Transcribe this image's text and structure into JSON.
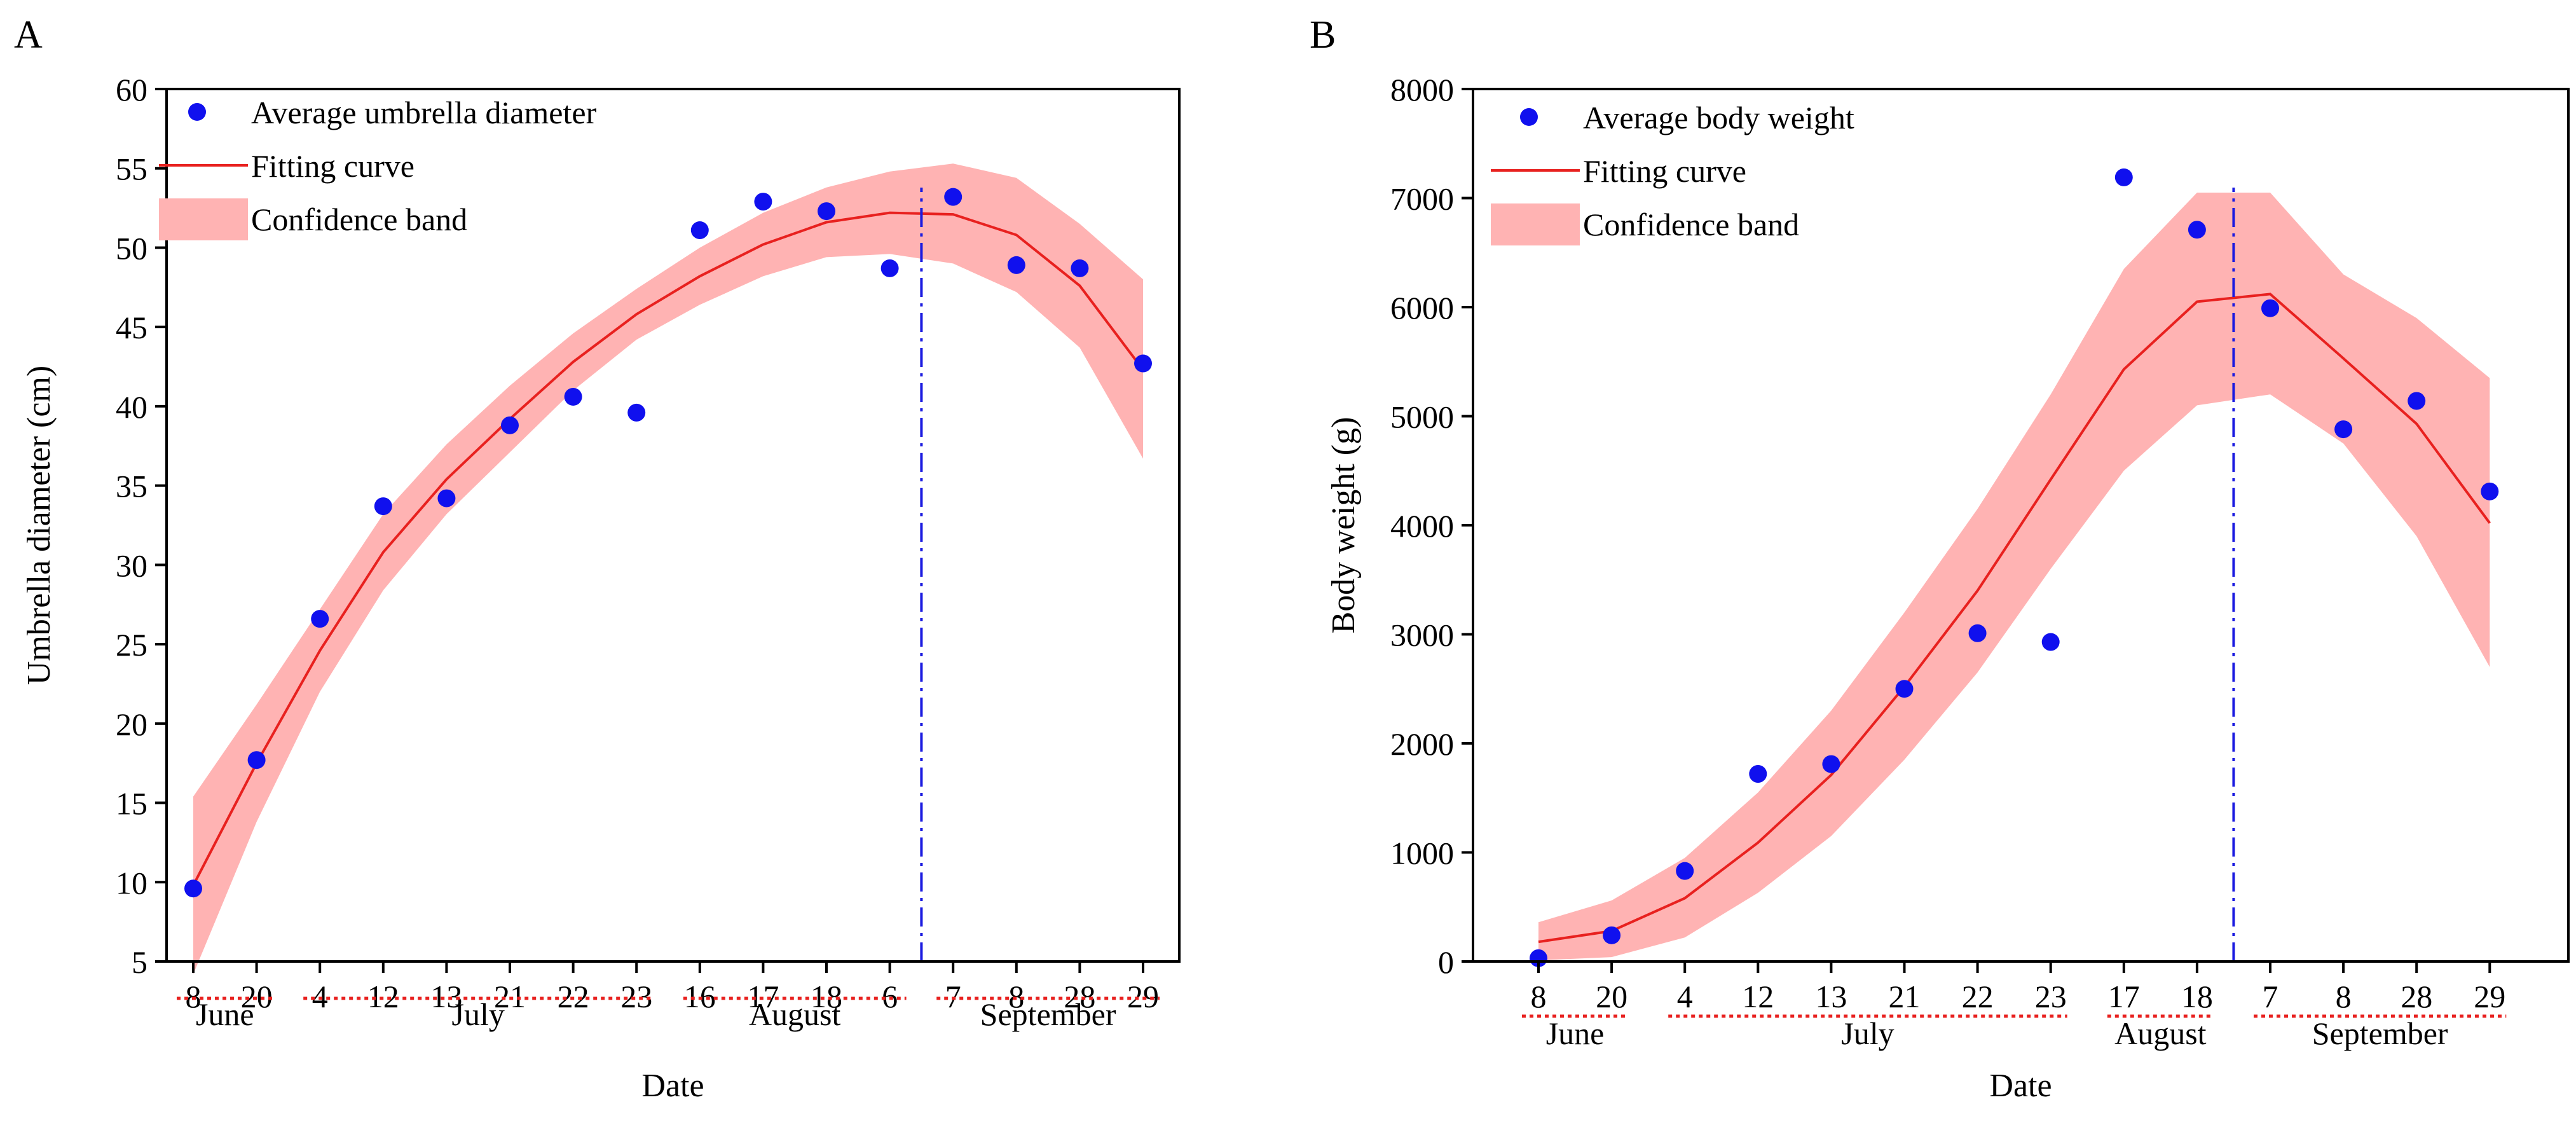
{
  "chart_data": [
    {
      "type": "scatter",
      "panel_label": "A",
      "xlabel": "Date",
      "ylabel": "Umbrella diameter (cm)",
      "ylim": [
        5,
        60
      ],
      "yticks": [
        5,
        10,
        15,
        20,
        25,
        30,
        35,
        40,
        45,
        50,
        55,
        60
      ],
      "categories": [
        "8",
        "20",
        "4",
        "12",
        "13",
        "21",
        "22",
        "23",
        "16",
        "17",
        "18",
        "6",
        "7",
        "8",
        "28",
        "29"
      ],
      "month_groups": [
        {
          "label": "June",
          "start": 0,
          "end": 1
        },
        {
          "label": "July",
          "start": 2,
          "end": 7
        },
        {
          "label": "August",
          "start": 8,
          "end": 11
        },
        {
          "label": "September",
          "start": 12,
          "end": 15
        }
      ],
      "series": [
        {
          "name": "Average umbrella diameter",
          "kind": "points",
          "color": "#1010ee",
          "values": [
            9.6,
            17.7,
            26.6,
            33.7,
            34.2,
            38.8,
            40.6,
            39.6,
            51.1,
            52.9,
            52.3,
            48.7,
            53.2,
            48.9,
            48.7,
            42.7
          ]
        },
        {
          "name": "Fitting curve",
          "kind": "line",
          "color": "#e8211f",
          "values": [
            9.8,
            17.5,
            24.6,
            30.8,
            35.4,
            39.2,
            42.8,
            45.8,
            48.2,
            50.2,
            51.6,
            52.2,
            52.1,
            50.8,
            47.6,
            42.3
          ]
        },
        {
          "name": "Confidence band",
          "kind": "band",
          "color": "#ffb3b3",
          "upper": [
            15.4,
            21.2,
            27.2,
            33.2,
            37.6,
            41.3,
            44.6,
            47.4,
            50.0,
            52.2,
            53.8,
            54.8,
            55.3,
            54.4,
            51.5,
            48.0
          ],
          "lower": [
            4.2,
            13.8,
            22.0,
            28.4,
            33.2,
            37.1,
            41.0,
            44.2,
            46.4,
            48.2,
            49.4,
            49.6,
            49.0,
            47.2,
            43.7,
            36.7
          ]
        }
      ],
      "vline_at": 11.5,
      "vline_color": "#1a1ae0"
    },
    {
      "type": "scatter",
      "panel_label": "B",
      "xlabel": "Date",
      "ylabel": "Body weight (g)",
      "ylim": [
        0,
        8000
      ],
      "yticks": [
        0,
        1000,
        2000,
        3000,
        4000,
        5000,
        6000,
        7000,
        8000
      ],
      "categories": [
        "8",
        "20",
        "4",
        "12",
        "13",
        "21",
        "22",
        "23",
        "17",
        "18",
        "7",
        "8",
        "28",
        "29"
      ],
      "month_groups": [
        {
          "label": "June",
          "start": 0,
          "end": 1
        },
        {
          "label": "July",
          "start": 2,
          "end": 7
        },
        {
          "label": "August",
          "start": 8,
          "end": 9
        },
        {
          "label": "September",
          "start": 10,
          "end": 13
        }
      ],
      "series": [
        {
          "name": "Average body weight",
          "kind": "points",
          "color": "#1010ee",
          "values": [
            30,
            240,
            830,
            1720,
            1810,
            2500,
            3010,
            2930,
            7190,
            6710,
            5990,
            4880,
            5140,
            4310
          ]
        },
        {
          "name": "Fitting curve",
          "kind": "line",
          "color": "#e8211f",
          "values": [
            180,
            280,
            580,
            1090,
            1710,
            2520,
            3400,
            4420,
            5430,
            6050,
            6120,
            5530,
            4930,
            4020
          ]
        },
        {
          "name": "Confidence band",
          "kind": "band",
          "color": "#ffb3b3",
          "upper": [
            360,
            560,
            950,
            1550,
            2300,
            3200,
            4150,
            5200,
            6350,
            7050,
            7050,
            6300,
            5900,
            5350
          ],
          "lower": [
            10,
            40,
            220,
            630,
            1150,
            1850,
            2650,
            3600,
            4500,
            5100,
            5200,
            4750,
            3900,
            2700
          ]
        }
      ],
      "vline_at": 9.5,
      "vline_color": "#1a1ae0"
    }
  ]
}
